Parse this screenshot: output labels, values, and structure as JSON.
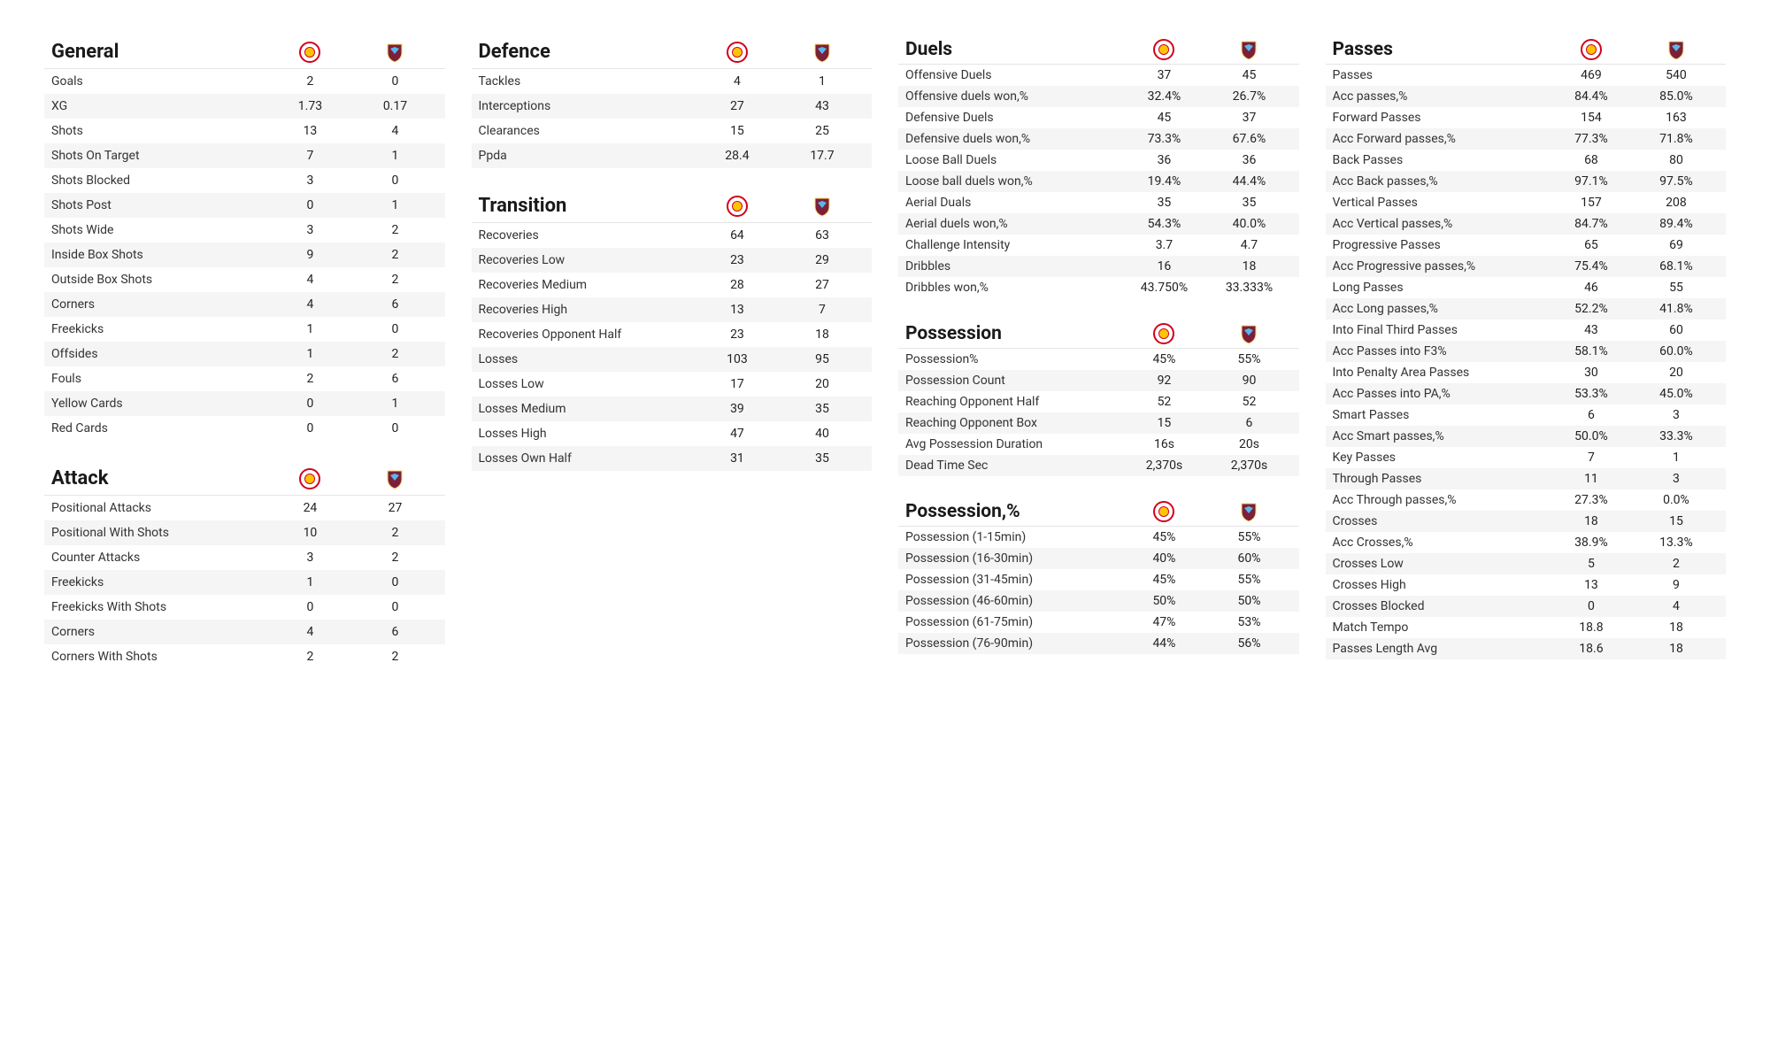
{
  "teams": {
    "team_a": {
      "crest_bg": "#ffffff",
      "crest_ring": "#d0021b",
      "crest_inner": "#ffc400",
      "label": "Team A"
    },
    "team_b": {
      "crest_bg": "#7b1f3a",
      "crest_accent": "#5bb6e8",
      "crest_outline": "#ffd86b",
      "label": "Team B"
    }
  },
  "layout": {
    "columns": [
      [
        "general",
        "attack"
      ],
      [
        "defence",
        "transition"
      ],
      [
        "duels",
        "possession",
        "possession_pct"
      ],
      [
        "passes"
      ]
    ],
    "dense_columns": [
      2,
      3
    ]
  },
  "sections": {
    "general": {
      "title": "General",
      "rows": [
        {
          "m": "Goals",
          "a": "2",
          "b": "0"
        },
        {
          "m": "XG",
          "a": "1.73",
          "b": "0.17"
        },
        {
          "m": "Shots",
          "a": "13",
          "b": "4"
        },
        {
          "m": "Shots On Target",
          "a": "7",
          "b": "1"
        },
        {
          "m": "Shots Blocked",
          "a": "3",
          "b": "0"
        },
        {
          "m": "Shots Post",
          "a": "0",
          "b": "1"
        },
        {
          "m": "Shots Wide",
          "a": "3",
          "b": "2"
        },
        {
          "m": "Inside Box Shots",
          "a": "9",
          "b": "2"
        },
        {
          "m": "Outside Box Shots",
          "a": "4",
          "b": "2"
        },
        {
          "m": "Corners",
          "a": "4",
          "b": "6"
        },
        {
          "m": "Freekicks",
          "a": "1",
          "b": "0"
        },
        {
          "m": "Offsides",
          "a": "1",
          "b": "2"
        },
        {
          "m": "Fouls",
          "a": "2",
          "b": "6"
        },
        {
          "m": "Yellow Cards",
          "a": "0",
          "b": "1"
        },
        {
          "m": "Red Cards",
          "a": "0",
          "b": "0"
        }
      ]
    },
    "attack": {
      "title": "Attack",
      "rows": [
        {
          "m": "Positional Attacks",
          "a": "24",
          "b": "27"
        },
        {
          "m": "Positional With Shots",
          "a": "10",
          "b": "2"
        },
        {
          "m": "Counter Attacks",
          "a": "3",
          "b": "2"
        },
        {
          "m": "Freekicks",
          "a": "1",
          "b": "0"
        },
        {
          "m": "Freekicks With Shots",
          "a": "0",
          "b": "0"
        },
        {
          "m": "Corners",
          "a": "4",
          "b": "6"
        },
        {
          "m": "Corners With Shots",
          "a": "2",
          "b": "2"
        }
      ]
    },
    "defence": {
      "title": "Defence",
      "rows": [
        {
          "m": "Tackles",
          "a": "4",
          "b": "1"
        },
        {
          "m": "Interceptions",
          "a": "27",
          "b": "43"
        },
        {
          "m": "Clearances",
          "a": "15",
          "b": "25"
        },
        {
          "m": "Ppda",
          "a": "28.4",
          "b": "17.7"
        }
      ]
    },
    "transition": {
      "title": "Transition",
      "rows": [
        {
          "m": "Recoveries",
          "a": "64",
          "b": "63"
        },
        {
          "m": "Recoveries Low",
          "a": "23",
          "b": "29"
        },
        {
          "m": "Recoveries Medium",
          "a": "28",
          "b": "27"
        },
        {
          "m": "Recoveries High",
          "a": "13",
          "b": "7"
        },
        {
          "m": "Recoveries Opponent Half",
          "a": "23",
          "b": "18"
        },
        {
          "m": "Losses",
          "a": "103",
          "b": "95"
        },
        {
          "m": "Losses Low",
          "a": "17",
          "b": "20"
        },
        {
          "m": "Losses Medium",
          "a": "39",
          "b": "35"
        },
        {
          "m": "Losses High",
          "a": "47",
          "b": "40"
        },
        {
          "m": "Losses Own Half",
          "a": "31",
          "b": "35"
        }
      ]
    },
    "duels": {
      "title": "Duels",
      "rows": [
        {
          "m": "Offensive Duels",
          "a": "37",
          "b": "45"
        },
        {
          "m": "Offensive duels won,%",
          "a": "32.4%",
          "b": "26.7%"
        },
        {
          "m": "Defensive Duels",
          "a": "45",
          "b": "37"
        },
        {
          "m": "Defensive duels won,%",
          "a": "73.3%",
          "b": "67.6%"
        },
        {
          "m": "Loose Ball Duels",
          "a": "36",
          "b": "36"
        },
        {
          "m": "Loose ball duels won,%",
          "a": "19.4%",
          "b": "44.4%"
        },
        {
          "m": "Aerial Duals",
          "a": "35",
          "b": "35"
        },
        {
          "m": "Aerial duels won,%",
          "a": "54.3%",
          "b": "40.0%"
        },
        {
          "m": "Challenge Intensity",
          "a": "3.7",
          "b": "4.7"
        },
        {
          "m": "Dribbles",
          "a": "16",
          "b": "18"
        },
        {
          "m": "Dribbles won,%",
          "a": "43.750%",
          "b": "33.333%"
        }
      ]
    },
    "possession": {
      "title": "Possession",
      "rows": [
        {
          "m": "Possession%",
          "a": "45%",
          "b": "55%"
        },
        {
          "m": "Possession Count",
          "a": "92",
          "b": "90"
        },
        {
          "m": "Reaching Opponent Half",
          "a": "52",
          "b": "52"
        },
        {
          "m": "Reaching Opponent Box",
          "a": "15",
          "b": "6"
        },
        {
          "m": "Avg Possession Duration",
          "a": "16s",
          "b": "20s"
        },
        {
          "m": "Dead Time Sec",
          "a": "2,370s",
          "b": "2,370s"
        }
      ]
    },
    "possession_pct": {
      "title": "Possession,%",
      "rows": [
        {
          "m": "Possession (1-15min)",
          "a": "45%",
          "b": "55%"
        },
        {
          "m": "Possession (16-30min)",
          "a": "40%",
          "b": "60%"
        },
        {
          "m": "Possession (31-45min)",
          "a": "45%",
          "b": "55%"
        },
        {
          "m": "Possession (46-60min)",
          "a": "50%",
          "b": "50%"
        },
        {
          "m": "Possession (61-75min)",
          "a": "47%",
          "b": "53%"
        },
        {
          "m": "Possession (76-90min)",
          "a": "44%",
          "b": "56%"
        }
      ]
    },
    "passes": {
      "title": "Passes",
      "rows": [
        {
          "m": "Passes",
          "a": "469",
          "b": "540"
        },
        {
          "m": "Acc passes,%",
          "a": "84.4%",
          "b": "85.0%"
        },
        {
          "m": "Forward Passes",
          "a": "154",
          "b": "163"
        },
        {
          "m": "Acc Forward passes,%",
          "a": "77.3%",
          "b": "71.8%"
        },
        {
          "m": "Back Passes",
          "a": "68",
          "b": "80"
        },
        {
          "m": "Acc Back passes,%",
          "a": "97.1%",
          "b": "97.5%"
        },
        {
          "m": "Vertical Passes",
          "a": "157",
          "b": "208"
        },
        {
          "m": "Acc Vertical passes,%",
          "a": "84.7%",
          "b": "89.4%"
        },
        {
          "m": "Progressive Passes",
          "a": "65",
          "b": "69"
        },
        {
          "m": "Acc Progressive passes,%",
          "a": "75.4%",
          "b": "68.1%"
        },
        {
          "m": "Long Passes",
          "a": "46",
          "b": "55"
        },
        {
          "m": "Acc Long passes,%",
          "a": "52.2%",
          "b": "41.8%"
        },
        {
          "m": "Into Final Third Passes",
          "a": "43",
          "b": "60"
        },
        {
          "m": "Acc Passes into F3%",
          "a": "58.1%",
          "b": "60.0%"
        },
        {
          "m": "Into Penalty Area Passes",
          "a": "30",
          "b": "20"
        },
        {
          "m": "Acc Passes into PA,%",
          "a": "53.3%",
          "b": "45.0%"
        },
        {
          "m": "Smart Passes",
          "a": "6",
          "b": "3"
        },
        {
          "m": "Acc Smart passes,%",
          "a": "50.0%",
          "b": "33.3%"
        },
        {
          "m": "Key Passes",
          "a": "7",
          "b": "1"
        },
        {
          "m": "Through Passes",
          "a": "11",
          "b": "3"
        },
        {
          "m": "Acc Through passes,%",
          "a": "27.3%",
          "b": "0.0%"
        },
        {
          "m": "Crosses",
          "a": "18",
          "b": "15"
        },
        {
          "m": "Acc Crosses,%",
          "a": "38.9%",
          "b": "13.3%"
        },
        {
          "m": "Crosses Low",
          "a": "5",
          "b": "2"
        },
        {
          "m": "Crosses High",
          "a": "13",
          "b": "9"
        },
        {
          "m": "Crosses Blocked",
          "a": "0",
          "b": "4"
        },
        {
          "m": "Match Tempo",
          "a": "18.8",
          "b": "18"
        },
        {
          "m": "Passes Length Avg",
          "a": "18.6",
          "b": "18"
        }
      ]
    }
  }
}
